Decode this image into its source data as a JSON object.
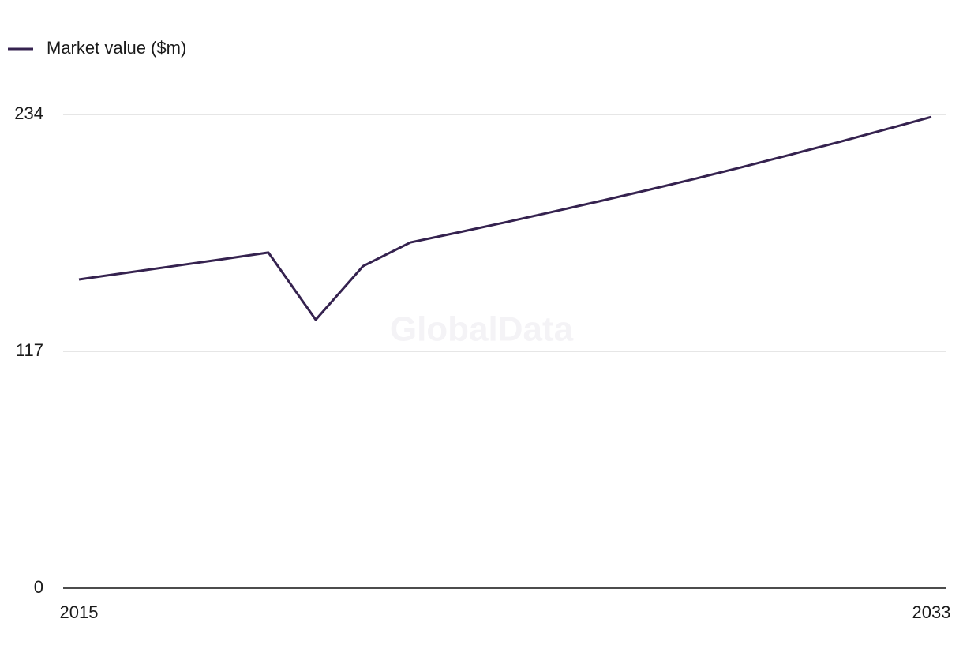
{
  "chart_data": {
    "type": "line",
    "x": [
      2015,
      2016,
      2017,
      2018,
      2019,
      2020,
      2021,
      2022,
      2023,
      2024,
      2025,
      2026,
      2027,
      2028,
      2029,
      2030,
      2031,
      2032,
      2033
    ],
    "series": [
      {
        "name": "Market value ($m)",
        "color": "#35224f",
        "values": [
          152.5,
          155.8,
          159.1,
          162.4,
          165.8,
          132.6,
          159.1,
          170.8,
          175.7,
          180.7,
          185.9,
          191.2,
          196.6,
          202.2,
          208.0,
          214.0,
          220.1,
          226.4,
          232.8
        ]
      }
    ],
    "xlim": [
      2015,
      2033
    ],
    "xticks": [
      2015,
      2033
    ],
    "ylim": [
      0,
      234
    ],
    "yticks": [
      0,
      117,
      234
    ],
    "grid": true,
    "legend": "top-left",
    "watermark": "GlobalData"
  }
}
